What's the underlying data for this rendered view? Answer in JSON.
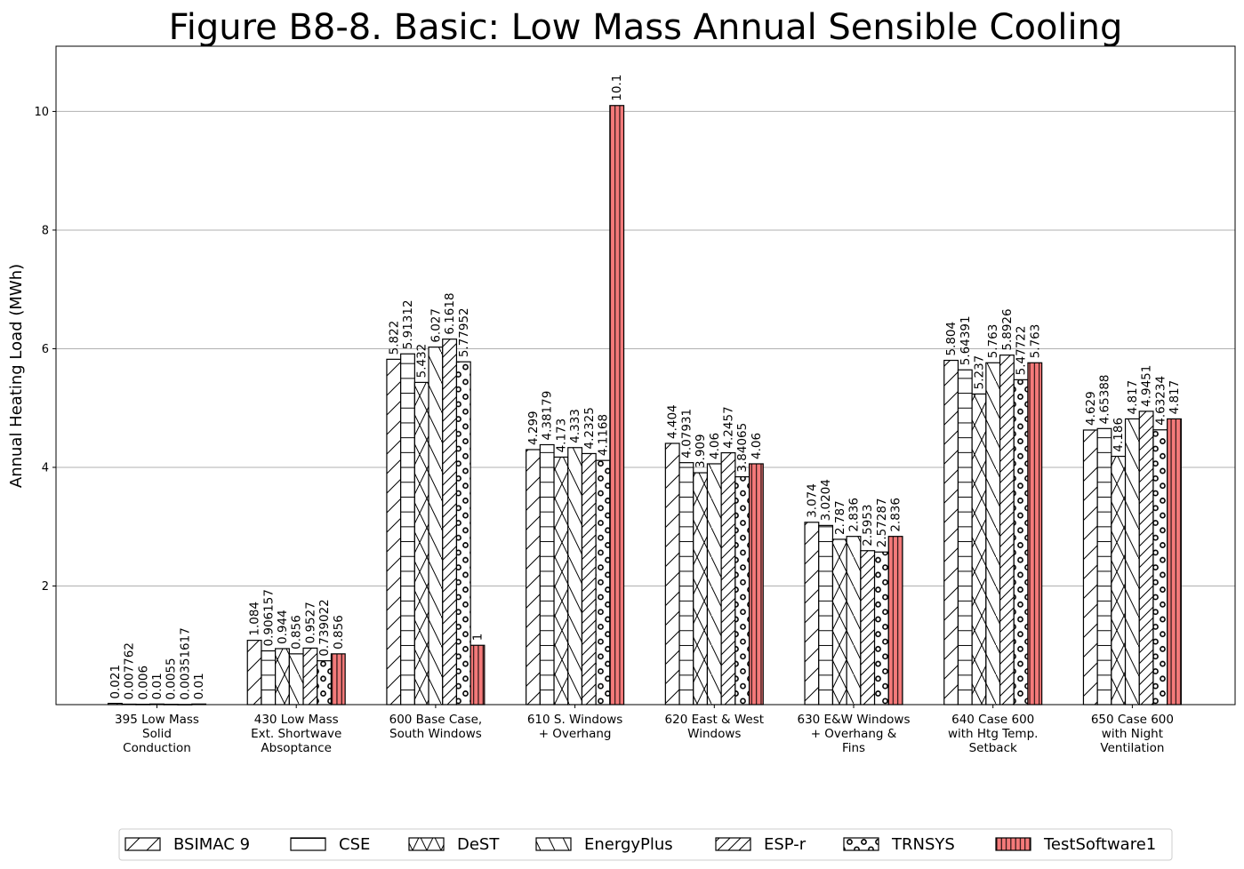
{
  "chart_data": {
    "type": "bar",
    "title": "Figure B8-8.  Basic: Low Mass Annual Sensible Cooling",
    "xlabel": "",
    "ylabel": "Annual Heating Load (MWh)",
    "ylim": [
      0,
      11.1
    ],
    "yticks": [
      2,
      4,
      6,
      8,
      10
    ],
    "grid": "y",
    "legend_position": "bottom",
    "categories": [
      [
        "395 Low Mass",
        "Solid",
        "Conduction"
      ],
      [
        "430 Low Mass",
        "Ext. Shortwave",
        "Absoptance"
      ],
      [
        "600 Base Case,",
        "South Windows"
      ],
      [
        "610 S. Windows",
        "+ Overhang"
      ],
      [
        "620 East & West",
        "Windows"
      ],
      [
        "630 E&W Windows",
        "+ Overhang &",
        "Fins"
      ],
      [
        "640 Case 600",
        "with Htg Temp.",
        "Setback"
      ],
      [
        "650 Case 600",
        "with Night",
        "Ventilation"
      ]
    ],
    "series": [
      {
        "name": "BSIMAC 9",
        "pattern": "diag-right",
        "color": "#ffffff",
        "values": [
          0.021,
          1.084,
          5.822,
          4.299,
          4.404,
          3.074,
          5.804,
          4.629
        ],
        "labels": [
          "0.021",
          "1.084",
          "5.822",
          "4.299",
          "4.404",
          "3.074",
          "5.804",
          "4.629"
        ]
      },
      {
        "name": "CSE",
        "pattern": "horizontal",
        "color": "#ffffff",
        "values": [
          0.007762,
          0.906157,
          5.91312,
          4.38179,
          4.07931,
          3.0204,
          5.64391,
          4.65388
        ],
        "labels": [
          "0.007762",
          "0.906157",
          "5.91312",
          "4.38179",
          "4.07931",
          "3.0204",
          "5.64391",
          "4.65388"
        ]
      },
      {
        "name": "DeST",
        "pattern": "cross",
        "color": "#ffffff",
        "values": [
          0.006,
          0.944,
          5.432,
          4.173,
          3.909,
          2.787,
          5.237,
          4.186
        ],
        "labels": [
          "0.006",
          "0.944",
          "5.432",
          "4.173",
          "3.909",
          "2.787",
          "5.237",
          "4.186"
        ]
      },
      {
        "name": "EnergyPlus",
        "pattern": "diag-left",
        "color": "#ffffff",
        "values": [
          0.01,
          0.856,
          6.027,
          4.333,
          4.06,
          2.836,
          5.763,
          4.817
        ],
        "labels": [
          "0.01",
          "0.856",
          "6.027",
          "4.333",
          "4.06",
          "2.836",
          "5.763",
          "4.817"
        ]
      },
      {
        "name": "ESP-r",
        "pattern": "diag-right-dense",
        "color": "#ffffff",
        "values": [
          0.0055,
          0.9527,
          6.1618,
          4.2325,
          4.2457,
          2.5953,
          5.8926,
          4.9451
        ],
        "labels": [
          "0.0055",
          "0.9527",
          "6.1618",
          "4.2325",
          "4.2457",
          "2.5953",
          "5.8926",
          "4.9451"
        ]
      },
      {
        "name": "TRNSYS",
        "pattern": "circles",
        "color": "#ffffff",
        "values": [
          0.00351617,
          0.739022,
          5.77952,
          4.1168,
          3.84065,
          2.57287,
          5.47722,
          4.63234
        ],
        "labels": [
          "0.00351617",
          "0.739022",
          "5.77952",
          "4.1168",
          "3.84065",
          "2.57287",
          "5.47722",
          "4.63234"
        ]
      },
      {
        "name": "TestSoftware1",
        "pattern": "vertical",
        "color": "#f47a7a",
        "values": [
          0.01,
          0.856,
          1,
          10.1,
          4.06,
          2.836,
          5.763,
          4.817
        ],
        "labels": [
          "0.01",
          "0.856",
          "1",
          "10.1",
          "4.06",
          "2.836",
          "5.763",
          "4.817"
        ]
      }
    ]
  }
}
